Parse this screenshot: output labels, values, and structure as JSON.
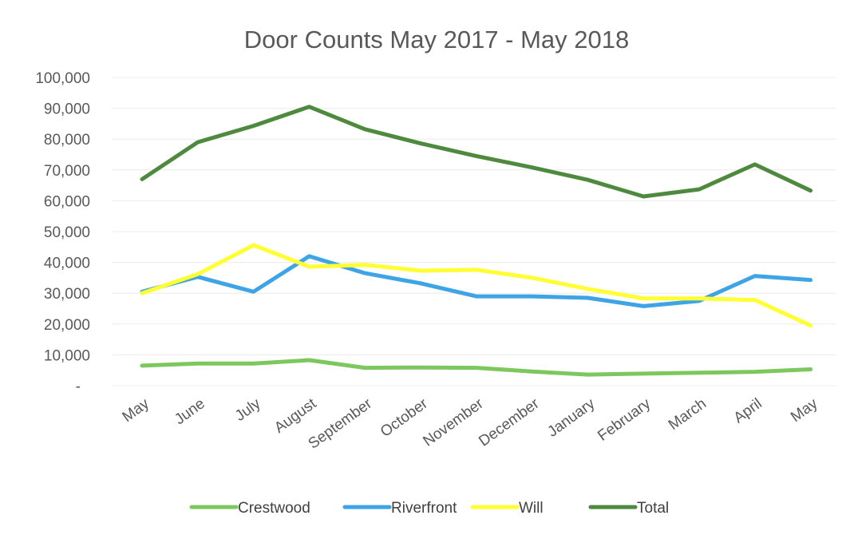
{
  "chart_data": {
    "type": "line",
    "title": "Door Counts May 2017 - May 2018",
    "xlabel": "",
    "ylabel": "",
    "categories": [
      "May",
      "June",
      "July",
      "August",
      "September",
      "October",
      "November",
      "December",
      "January",
      "February",
      "March",
      "April",
      "May"
    ],
    "y_ticks": [
      "-",
      "10,000",
      "20,000",
      "30,000",
      "40,000",
      "50,000",
      "60,000",
      "70,000",
      "80,000",
      "90,000",
      "100,000"
    ],
    "ylim": [
      0,
      100000
    ],
    "grid": true,
    "legend_position": "bottom",
    "series": [
      {
        "name": "Crestwood",
        "color": "#7dc75f",
        "values": [
          6500,
          7200,
          7200,
          8300,
          5800,
          5900,
          5800,
          4600,
          3600,
          3900,
          4200,
          4500,
          5300
        ]
      },
      {
        "name": "Riverfront",
        "color": "#3ea4e6",
        "values": [
          30500,
          35300,
          30500,
          42000,
          36500,
          33200,
          29000,
          29000,
          28500,
          25800,
          27500,
          35600,
          34300
        ]
      },
      {
        "name": "Will",
        "color": "#ffff33",
        "values": [
          30000,
          36200,
          45600,
          38600,
          39200,
          37300,
          37600,
          35000,
          31400,
          28300,
          28300,
          27800,
          19500
        ]
      },
      {
        "name": "Total",
        "color": "#4e8a3e",
        "values": [
          67000,
          79000,
          84300,
          90500,
          83200,
          78600,
          74500,
          70800,
          66800,
          61400,
          63700,
          71800,
          63300
        ]
      }
    ]
  }
}
